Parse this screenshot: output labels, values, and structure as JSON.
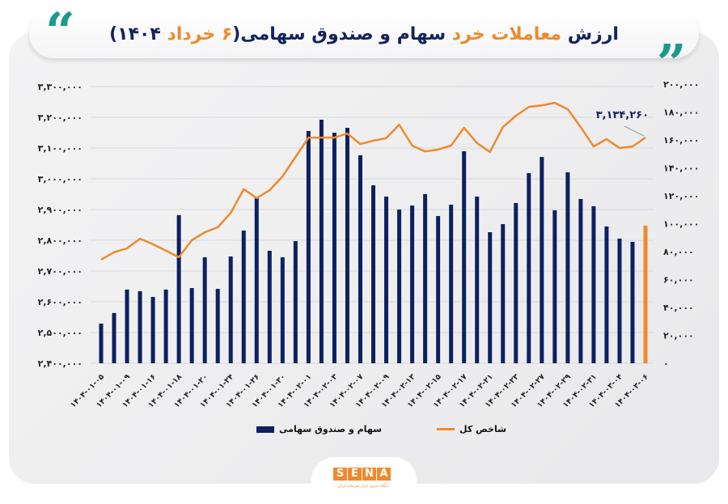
{
  "header": {
    "title_part1": "ارزش ",
    "title_highlight1": "معاملات خرد",
    "title_part2": " سهام و صندوق سهامی(",
    "title_highlight2": "۶ خرداد",
    "title_part3": " ۱۴۰۴)",
    "quote_icon": "quote-mark-icon"
  },
  "legend": {
    "bar_label": "سهام و صندوق سهامی",
    "line_label": "شاخص کل"
  },
  "colors": {
    "bar": "#0d2060",
    "bar_highlight": "#f0892a",
    "line": "#f0892a",
    "title_dark": "#13235b",
    "title_accent": "#f0892a",
    "quote": "#1a9a8a"
  },
  "logo": {
    "letters": [
      "S",
      "E",
      "N",
      "A"
    ],
    "subtitle": "پایگاه خبری بازار سرمایه ایران"
  },
  "chart_data": {
    "type": "bar+line",
    "title": "ارزش معاملات خرد سهام و صندوق سهامی (۶ خرداد ۱۴۰۴)",
    "xlabel": "",
    "ylabel_left": "شاخص کل",
    "ylabel_right": "سهام و صندوق سهامی",
    "left_axis": {
      "ylim": [
        2400000,
        3300000
      ],
      "ticks": [
        "۲,۴۰۰,۰۰۰",
        "۲,۵۰۰,۰۰۰",
        "۲,۶۰۰,۰۰۰",
        "۲,۷۰۰,۰۰۰",
        "۲,۸۰۰,۰۰۰",
        "۲,۹۰۰,۰۰۰",
        "۳,۰۰۰,۰۰۰",
        "۳,۱۰۰,۰۰۰",
        "۳,۲۰۰,۰۰۰",
        "۳,۳۰۰,۰۰۰"
      ]
    },
    "right_axis": {
      "ylim": [
        0,
        200000
      ],
      "ticks": [
        "۰",
        "۲۰,۰۰۰",
        "۴۰,۰۰۰",
        "۶۰,۰۰۰",
        "۸۰,۰۰۰",
        "۱۰۰,۰۰۰",
        "۱۲۰,۰۰۰",
        "۱۴۰,۰۰۰",
        "۱۶۰,۰۰۰",
        "۱۸۰,۰۰۰",
        "۲۰۰,۰۰۰"
      ]
    },
    "grid": true,
    "legend_position": "bottom",
    "x_tick_labels": [
      "۱۴۰۴-۰۱-۰۵",
      "۱۴۰۴-۰۱-۰۹",
      "۱۴۰۴-۰۱-۱۶",
      "۱۴۰۴-۰۱-۱۸",
      "۱۴۰۴-۰۱-۲۰",
      "۱۴۰۴-۰۱-۲۴",
      "۱۴۰۴-۰۱-۲۶",
      "۱۴۰۴-۰۱-۳۰",
      "۱۴۰۴-۰۲-۰۱",
      "۱۴۰۴-۰۲-۰۳",
      "۱۴۰۴-۰۲-۰۷",
      "۱۴۰۴-۰۲-۰۹",
      "۱۴۰۴-۰۲-۱۳",
      "۱۴۰۴-۰۲-۱۵",
      "۱۴۰۴-۰۲-۱۷",
      "۱۴۰۴-۰۲-۲۱",
      "۱۴۰۴-۰۲-۲۳",
      "۱۴۰۴-۰۲-۲۷",
      "۱۴۰۴-۰۲-۲۹",
      "۱۴۰۴-۰۲-۳۱",
      "۱۴۰۴-۰۳-۰۴",
      "۱۴۰۴-۰۳-۰۶"
    ],
    "x_tick_every": 2,
    "series": [
      {
        "name": "سهام و صندوق سهامی",
        "type": "bar",
        "axis": "right",
        "values": [
          28400,
          36000,
          52800,
          51600,
          47500,
          52800,
          106100,
          53900,
          75900,
          53300,
          76500,
          95100,
          118800,
          80600,
          75900,
          87500,
          166400,
          174500,
          165200,
          168700,
          149000,
          127500,
          119400,
          110100,
          113000,
          121200,
          105500,
          113600,
          151900,
          119400,
          93900,
          99700,
          114800,
          136200,
          147800,
          109600,
          136800,
          117700,
          112500,
          98000,
          89300,
          87000,
          98600
        ],
        "highlight_last": true
      },
      {
        "name": "شاخص کل",
        "type": "line",
        "axis": "left",
        "values": [
          2737000,
          2761000,
          2774000,
          2805000,
          2787000,
          2766000,
          2745000,
          2800000,
          2826000,
          2842000,
          2889000,
          2966000,
          2937000,
          2963000,
          3008000,
          3071000,
          3134000,
          3134000,
          3134000,
          3147000,
          3113000,
          3124000,
          3132000,
          3176000,
          3108000,
          3089000,
          3095000,
          3108000,
          3166000,
          3116000,
          3087000,
          3168000,
          3205000,
          3234000,
          3239000,
          3247000,
          3226000,
          3168000,
          3105000,
          3129000,
          3100000,
          3105000,
          3134260
        ]
      }
    ],
    "annotations": [
      {
        "text": "۳,۱۳۴,۲۶۰",
        "target": "last line point"
      }
    ]
  }
}
